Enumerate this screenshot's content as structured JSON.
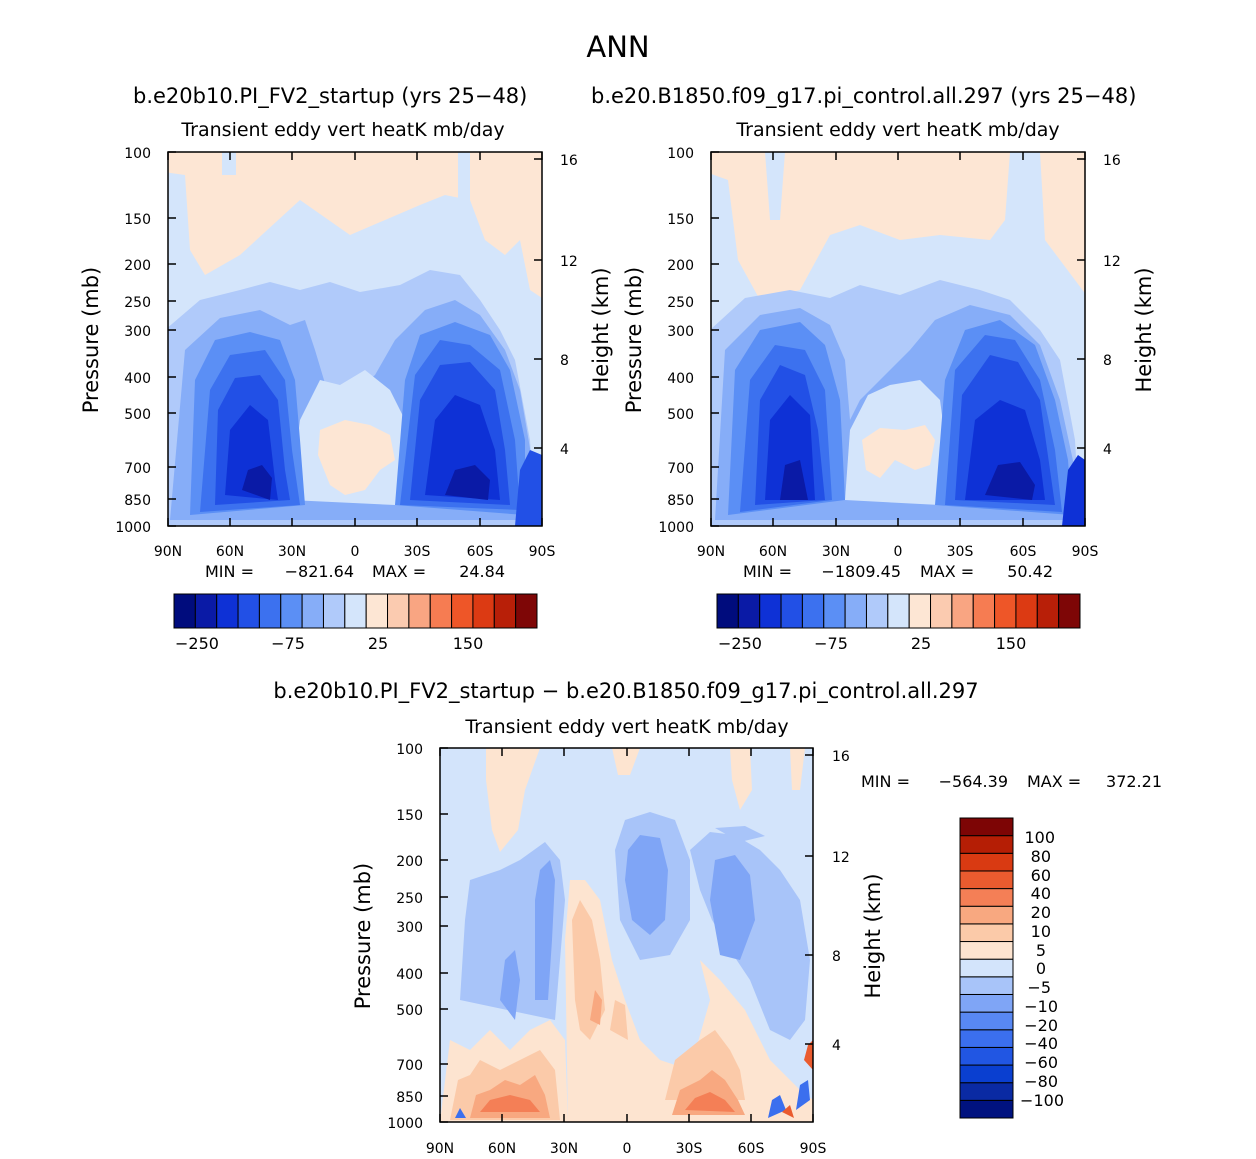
{
  "figure": {
    "season": "ANN",
    "title_left": "b.e20b10.PI_FV2_startup (yrs 25−48)",
    "title_right": "b.e20.B1850.f09_g17.pi_control.all.297 (yrs 25−48)",
    "diff_title": "b.e20b10.PI_FV2_startup − b.e20.B1850.f09_g17.pi_control.all.297"
  },
  "colors": {
    "abs_palette": [
      "#000c7d",
      "#0a1aa6",
      "#0e31d6",
      "#2250e6",
      "#3c71ef",
      "#5b8ff5",
      "#86adf8",
      "#b0cafa",
      "#d4e5fb",
      "#fde6d4",
      "#fbcbb0",
      "#f9a582",
      "#f67c52",
      "#ee5628",
      "#dc3a13",
      "#b81f08",
      "#7e0606"
    ],
    "diff_palette": [
      "#00127f",
      "#0a2aa3",
      "#0a3fd0",
      "#2156e3",
      "#3b6fee",
      "#5888f3",
      "#7fa5f6",
      "#a8c4f9",
      "#d3e4fb",
      "#fde4d0",
      "#fbcaa9",
      "#f8a880",
      "#f47f56",
      "#ea5b2f",
      "#d93a12",
      "#b51e05",
      "#7d0505"
    ]
  },
  "chart_data": [
    {
      "id": "test",
      "type": "contour",
      "title": "Transient eddy vert heatK mb/day",
      "ylabel": "Pressure (mb)",
      "ylabel_right": "Height (km)",
      "x_ticks": [
        "90N",
        "60N",
        "30N",
        "0",
        "30S",
        "60S",
        "90S"
      ],
      "y_ticks": [
        100,
        150,
        200,
        250,
        300,
        400,
        500,
        700,
        850,
        1000
      ],
      "y_right_ticks": [
        16,
        12,
        8,
        4
      ],
      "min_label": "MIN =",
      "min_value": "−821.64",
      "max_label": "MAX =",
      "max_value": "24.84",
      "colorbar_labels": [
        "−250",
        "−75",
        "25",
        "150"
      ]
    },
    {
      "id": "control",
      "type": "contour",
      "title": "Transient eddy vert heatK mb/day",
      "ylabel": "Pressure (mb)",
      "ylabel_right": "Height (km)",
      "x_ticks": [
        "90N",
        "60N",
        "30N",
        "0",
        "30S",
        "60S",
        "90S"
      ],
      "y_ticks": [
        100,
        150,
        200,
        250,
        300,
        400,
        500,
        700,
        850,
        1000
      ],
      "y_right_ticks": [
        16,
        12,
        8,
        4
      ],
      "min_label": "MIN =",
      "min_value": "−1809.45",
      "max_label": "MAX =",
      "max_value": "50.42",
      "colorbar_labels": [
        "−250",
        "−75",
        "25",
        "150"
      ]
    },
    {
      "id": "difference",
      "type": "contour",
      "title": "Transient eddy vert heatK mb/day",
      "ylabel": "Pressure (mb)",
      "ylabel_right": "Height (km)",
      "x_ticks": [
        "90N",
        "60N",
        "30N",
        "0",
        "30S",
        "60S",
        "90S"
      ],
      "y_ticks": [
        100,
        150,
        200,
        250,
        300,
        400,
        500,
        700,
        850,
        1000
      ],
      "y_right_ticks": [
        16,
        12,
        8,
        4
      ],
      "min_label": "MIN =",
      "min_value": "−564.39",
      "max_label": "MAX =",
      "max_value": "372.21",
      "colorbar_levels": [
        "100",
        "80",
        "60",
        "40",
        "20",
        "10",
        "5",
        "0",
        "−5",
        "−10",
        "−20",
        "−40",
        "−60",
        "−80",
        "−100"
      ]
    }
  ]
}
